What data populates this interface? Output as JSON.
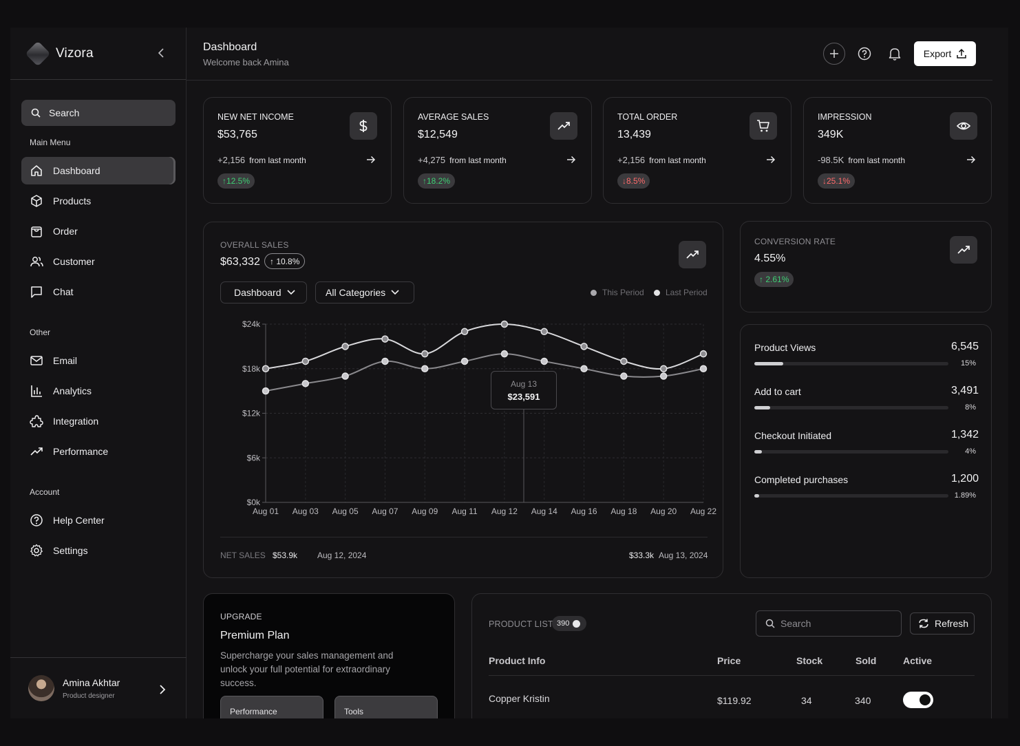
{
  "sidebar": {
    "brand": "Vizora",
    "search_label": "Search",
    "main_menu_title": "Main Menu",
    "main_menu": [
      {
        "label": "Dashboard",
        "icon": "home-icon",
        "active": true
      },
      {
        "label": "Products",
        "icon": "box-icon"
      },
      {
        "label": "Order",
        "icon": "shopping-bag-icon"
      },
      {
        "label": "Customer",
        "icon": "users-icon"
      },
      {
        "label": "Chat",
        "icon": "chat-icon"
      }
    ],
    "other_title": "Other",
    "other_menu": [
      {
        "label": "Email",
        "icon": "mail-icon"
      },
      {
        "label": "Analytics",
        "icon": "bar-chart-icon"
      },
      {
        "label": "Integration",
        "icon": "puzzle-icon"
      },
      {
        "label": "Performance",
        "icon": "trending-up-icon"
      }
    ],
    "account_title": "Account",
    "account_menu": [
      {
        "label": "Help Center",
        "icon": "help-circle-icon"
      },
      {
        "label": "Settings",
        "icon": "gear-icon"
      }
    ],
    "profile": {
      "name": "Amina Akhtar",
      "role": "Product designer"
    }
  },
  "header": {
    "title": "Dashboard",
    "subtitle": "Welcome back Amina",
    "export_label": "Export"
  },
  "kpis": [
    {
      "label": "NEW NET INCOME",
      "value": "$53,765",
      "delta": "+2,156",
      "from": "from last month",
      "pct": "↑12.5%",
      "trend": "up",
      "icon": "dollar-icon"
    },
    {
      "label": "AVERAGE SALES",
      "value": "$12,549",
      "delta": "+4,275",
      "from": "from last month",
      "pct": "↑18.2%",
      "trend": "up",
      "icon": "trending-up-icon"
    },
    {
      "label": "TOTAL ORDER",
      "value": "13,439",
      "delta": "+2,156",
      "from": "from last month",
      "pct": "↓8.5%",
      "trend": "down",
      "icon": "cart-icon"
    },
    {
      "label": "IMPRESSION",
      "value": "349K",
      "delta": "-98.5K",
      "from": "from last month",
      "pct": "↓25.1%",
      "trend": "down",
      "icon": "eye-icon"
    }
  ],
  "overall_sales": {
    "label": "OVERALL SALES",
    "value": "$63,332",
    "badge": "↑ 10.8%",
    "dropdown_1": "Dashboard",
    "dropdown_2": "All Categories",
    "legend_1": "This Period",
    "legend_2": "Last Period",
    "tooltip_date": "Aug 13",
    "tooltip_value": "$23,591",
    "footer_label": "NET SALES",
    "footer_value_1": "$53.9k",
    "footer_date_1": "Aug 12, 2024",
    "footer_value_2": "$33.3k",
    "footer_date_2": "Aug 13, 2024"
  },
  "chart_data": {
    "type": "line",
    "x": [
      "Aug 01",
      "Aug 03",
      "Aug 05",
      "Aug 07",
      "Aug 09",
      "Aug 11",
      "Aug 12",
      "Aug 14",
      "Aug 16",
      "Aug 18",
      "Aug 20",
      "Aug 22"
    ],
    "yticks": [
      "$0k",
      "$6k",
      "$12k",
      "$18k",
      "$24k"
    ],
    "ylim": [
      0,
      24
    ],
    "series": [
      {
        "name": "This Period",
        "values": [
          18,
          19,
          21,
          22,
          20,
          23,
          24,
          23,
          21,
          19,
          18,
          20
        ],
        "color": "#d9d9dc"
      },
      {
        "name": "Last Period",
        "values": [
          15,
          16,
          17,
          19,
          18,
          19,
          20,
          19,
          18,
          17,
          17,
          18
        ],
        "color": "#8a898d"
      }
    ],
    "grid": true
  },
  "conversion": {
    "label": "CONVERSION RATE",
    "value": "4.55%",
    "pct": "↑ 2.61%"
  },
  "funnel": [
    {
      "name": "Product Views",
      "value": "6,545",
      "pct": "15%",
      "fraction": 0.15
    },
    {
      "name": "Add to cart",
      "value": "3,491",
      "pct": "8%",
      "fraction": 0.08
    },
    {
      "name": "Checkout Initiated",
      "value": "1,342",
      "pct": "4%",
      "fraction": 0.04
    },
    {
      "name": "Completed purchases",
      "value": "1,200",
      "pct": "1.89%",
      "fraction": 0.0189
    }
  ],
  "upgrade": {
    "label": "UPGRADE",
    "title": "Premium Plan",
    "description": "Supercharge your sales management and unlock your full potential for extraordinary success.",
    "tab_1": "Performance",
    "tab_2": "Tools"
  },
  "product_list": {
    "label": "PRODUCT LIST",
    "count": "390",
    "search_placeholder": "Search",
    "refresh_label": "Refresh",
    "columns": [
      "Product Info",
      "Price",
      "Stock",
      "Sold",
      "Active"
    ],
    "rows": [
      {
        "name": "Copper Kristin",
        "price": "$119.92",
        "stock": "34",
        "sold": "340",
        "active": true
      }
    ]
  },
  "colors": {
    "positive": "#3ecf74",
    "negative": "#ff6b6b",
    "background": "#141315"
  }
}
